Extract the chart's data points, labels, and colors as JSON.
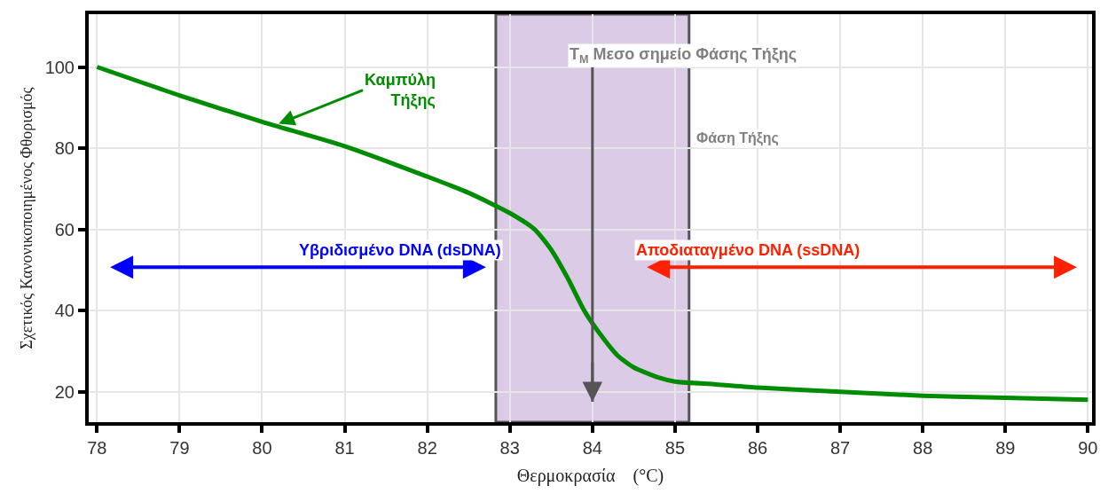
{
  "chart_data": {
    "type": "line",
    "xlabel": "Θερμοκρασία    (°C)",
    "ylabel": "Σχετικός Κανονικοποιημένος Φθορισμός",
    "x": [
      78,
      79,
      80,
      81,
      82,
      82.5,
      83,
      83.3,
      83.5,
      83.7,
      83.9,
      84.1,
      84.3,
      84.5,
      84.8,
      85,
      85.5,
      86,
      87,
      88,
      89,
      90
    ],
    "series": [
      {
        "color": "#008c00",
        "values": [
          100,
          93,
          86.5,
          80.5,
          73,
          69,
          64,
          60,
          55,
          48,
          40,
          34,
          29,
          26,
          23.5,
          22.5,
          21.8,
          21,
          20,
          19,
          18.5,
          18
        ]
      }
    ],
    "xlim": [
      77.9,
      90.05
    ],
    "ylim": [
      12.5,
      113
    ],
    "xticks": [
      78,
      79,
      80,
      81,
      82,
      83,
      84,
      85,
      86,
      87,
      88,
      89,
      90
    ],
    "yticks": [
      20,
      40,
      60,
      80,
      100
    ],
    "grid": true,
    "marker": "none",
    "line_style": "solid",
    "ref_lines": [
      {
        "axis": "x",
        "value": 84,
        "label": "T$_{M}$ Μεσο σημείο Φάσης Τήξης",
        "color": "#555555"
      }
    ],
    "bands": [
      {
        "axis": "x",
        "from": 82.83,
        "to": 85.17,
        "label": "Φάση Τήξης",
        "color": "#dccbe6"
      }
    ],
    "annotations": [
      {
        "text": "Καμπύλη\nΤήξης",
        "x": 80.2,
        "y": 86
      },
      "Υβριδισμένο DNA (dsDNA)",
      "Αποδιαταγμένο DNA (ssDNA)"
    ]
  }
}
